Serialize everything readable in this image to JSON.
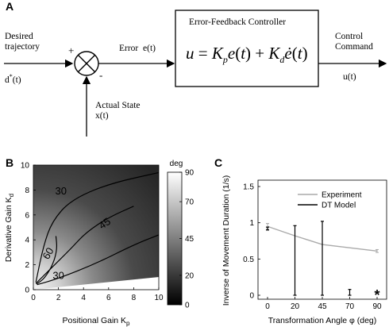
{
  "panel_a": {
    "letter": "A",
    "input_label_line1": "Desired",
    "input_label_line2": "trajectory",
    "input_symbol": "d",
    "input_symbol_sup": "*",
    "input_symbol_arg": "(t)",
    "plus_sign": "+",
    "minus_sign": "-",
    "error_label": "Error  e(t)",
    "controller_title": "Error-Feedback Controller",
    "control_law": "u = K_p e(t) + K_d ė(t)",
    "output_label_line1": "Control",
    "output_label_line2": "Command",
    "output_symbol": "u(t)",
    "feedback_label_line1": "Actual State",
    "feedback_label_line2": "x(t)"
  },
  "panel_b": {
    "letter": "B",
    "xlabel": "Positional Gain K",
    "xlabel_sub": "p",
    "ylabel": "Derivative Gain K",
    "ylabel_sub": "d",
    "colorbar_unit": "deg",
    "colorbar_ticks": [
      "90",
      "70",
      "45",
      "20",
      "0"
    ],
    "contour_labels": [
      "30",
      "45",
      "60",
      "30"
    ]
  },
  "panel_c": {
    "letter": "C",
    "ylabel": "Inverse of Movement Duration (1/s)",
    "xlabel": "Transformation Angle φ (deg)",
    "star": "*"
  },
  "chart_data": [
    {
      "type": "heatmap",
      "title": "",
      "xlabel": "Positional Gain Kp",
      "ylabel": "Derivative Gain Kd",
      "xlim": [
        0,
        10
      ],
      "ylim": [
        0,
        10
      ],
      "xticks": [
        0,
        2,
        4,
        6,
        8,
        10
      ],
      "yticks": [
        0,
        2,
        4,
        6,
        8,
        10
      ],
      "colorbar": {
        "label": "deg",
        "range": [
          0,
          90
        ],
        "ticks": [
          0,
          20,
          45,
          70,
          90
        ],
        "colormap": "gray"
      },
      "contours": [
        {
          "level": 30,
          "label": "30",
          "points": [
            [
              0.3,
              0.4
            ],
            [
              2,
              0.9
            ],
            [
              5,
              2.1
            ],
            [
              8,
              3.6
            ],
            [
              10,
              4.4
            ]
          ]
        },
        {
          "level": 30,
          "label": "30",
          "points": [
            [
              0.2,
              0.6
            ],
            [
              0.8,
              3.5
            ],
            [
              1.5,
              5.5
            ],
            [
              3,
              7.2
            ],
            [
              6,
              8.5
            ],
            [
              10,
              9.4
            ]
          ]
        },
        {
          "level": 45,
          "label": "45",
          "points": [
            [
              0.2,
              0.5
            ],
            [
              1.5,
              1.8
            ],
            [
              3,
              3.3
            ],
            [
              4.2,
              4.6
            ],
            [
              6,
              5.8
            ],
            [
              8,
              6.7
            ]
          ]
        },
        {
          "level": 60,
          "label": "60",
          "points": [
            [
              0.25,
              0.45
            ],
            [
              0.9,
              0.9
            ],
            [
              1.6,
              2.1
            ],
            [
              1.9,
              3.3
            ],
            [
              1.8,
              4.3
            ]
          ]
        }
      ]
    },
    {
      "type": "line",
      "title": "",
      "xlabel": "Transformation Angle φ (deg)",
      "ylabel": "Inverse of Movement Duration (1/s)",
      "categories": [
        "0",
        "20",
        "45",
        "70",
        "90"
      ],
      "ylim": [
        0,
        1.5
      ],
      "yticks": [
        0,
        0.5,
        1,
        1.5
      ],
      "legend": "top-right",
      "series": [
        {
          "name": "Experiment",
          "color": "#aaaaaa",
          "x": [
            0,
            20,
            45,
            90
          ],
          "y": [
            0.95,
            0.82,
            0.7,
            0.61
          ],
          "err": [
            0.04,
            0.0,
            0.0,
            0.02
          ]
        },
        {
          "name": "DT Model",
          "color": "#000000",
          "errorbars": [
            {
              "x": 0,
              "center": 0.92,
              "low": 0.9,
              "high": 0.94
            },
            {
              "x": 20,
              "center": 0.5,
              "low": 0.0,
              "high": 0.96
            },
            {
              "x": 45,
              "center": 0.52,
              "low": 0.0,
              "high": 1.02
            },
            {
              "x": 70,
              "center": 0.04,
              "low": 0.0,
              "high": 0.08
            }
          ]
        }
      ],
      "annotations": [
        {
          "x": 90,
          "y": 0.0,
          "text": "*"
        }
      ]
    }
  ]
}
